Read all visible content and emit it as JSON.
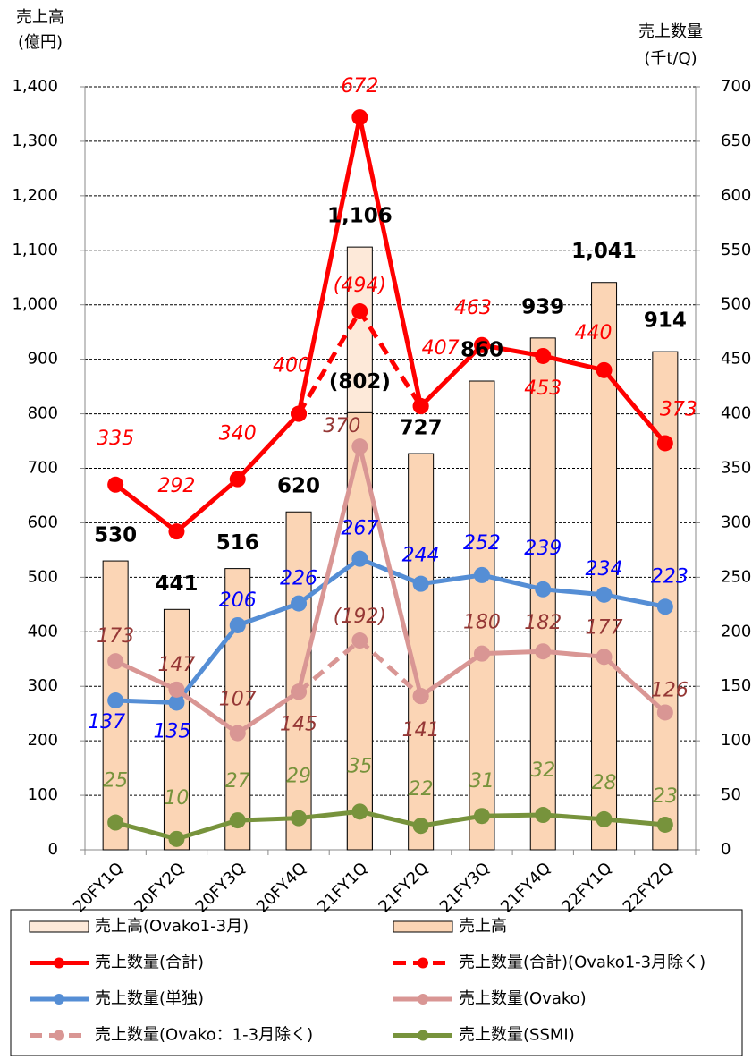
{
  "chart_data": {
    "type": "bar_line",
    "y_label": [
      "売上高",
      "(億円)"
    ],
    "y2_label": [
      "売上数量",
      "(千t/Q)"
    ],
    "categories": [
      "20FY1Q",
      "20FY2Q",
      "20FY3Q",
      "20FY4Q",
      "21FY1Q",
      "21FY2Q",
      "21FY3Q",
      "21FY4Q",
      "22FY1Q",
      "22FY2Q"
    ],
    "ylim": [
      0,
      1400
    ],
    "yticks": [
      0,
      100,
      200,
      300,
      400,
      500,
      600,
      700,
      800,
      900,
      {
        "value": 1000,
        "label": "1,000"
      },
      {
        "value": 1100,
        "label": "1,100"
      },
      {
        "value": 1200,
        "label": "1,200"
      },
      {
        "value": 1300,
        "label": "1,300"
      },
      {
        "value": 1400,
        "label": "1,400"
      }
    ],
    "y2lim": [
      0,
      700
    ],
    "y2ticks": [
      0,
      50,
      100,
      150,
      200,
      250,
      300,
      350,
      400,
      450,
      500,
      550,
      600,
      650,
      700
    ],
    "grid": true,
    "series": [
      {
        "name": "売上高(Ovako1-3月)",
        "type": "bar",
        "color": "#fde9d9",
        "values": [
          null,
          null,
          null,
          null,
          1106,
          null,
          null,
          null,
          null,
          null
        ],
        "value_labels": [
          null,
          null,
          null,
          null,
          "1,106",
          null,
          null,
          null,
          null,
          null
        ]
      },
      {
        "name": "売上高",
        "type": "bar",
        "color": "#fbd5b5",
        "values": [
          530,
          441,
          516,
          620,
          802,
          727,
          860,
          939,
          1041,
          914
        ],
        "value_labels": [
          "530",
          "441",
          "516",
          "620",
          "(802)",
          "727",
          "860",
          "939",
          "1,041",
          "914"
        ]
      },
      {
        "name": "売上数量(合計)",
        "type": "line",
        "axis": "y2",
        "color": "#ff0000",
        "label_color": "#ff0000",
        "values": [
          335,
          292,
          340,
          400,
          672,
          407,
          463,
          453,
          440,
          373
        ]
      },
      {
        "name": "売上数量(合計)(Ovako1-3月除く)",
        "type": "line",
        "axis": "y2",
        "dashed": true,
        "color": "#ff0000",
        "label_color": "#ff0000",
        "values": [
          null,
          null,
          null,
          400,
          494,
          407,
          null,
          null,
          null,
          null
        ],
        "value_labels": [
          null,
          null,
          null,
          null,
          "(494)",
          null,
          null,
          null,
          null,
          null
        ]
      },
      {
        "name": "売上数量(単独)",
        "type": "line",
        "axis": "y2",
        "color": "#558ed5",
        "label_color": "#0000ff",
        "values": [
          137,
          135,
          206,
          226,
          267,
          244,
          252,
          239,
          234,
          223
        ]
      },
      {
        "name": "売上数量(Ovako)",
        "type": "line",
        "axis": "y2",
        "color": "#d99694",
        "label_color": "#953735",
        "values": [
          173,
          147,
          107,
          145,
          370,
          141,
          180,
          182,
          177,
          126
        ]
      },
      {
        "name": "売上数量(Ovako：1-3月除く)",
        "type": "line",
        "axis": "y2",
        "dashed": true,
        "color": "#d99694",
        "label_color": "#953735",
        "values": [
          null,
          null,
          null,
          145,
          192,
          141,
          null,
          null,
          null,
          null
        ],
        "value_labels": [
          null,
          null,
          null,
          null,
          "(192)",
          null,
          null,
          null,
          null,
          null
        ]
      },
      {
        "name": "売上数量(SSMI)",
        "type": "line",
        "axis": "y2",
        "color": "#77933c",
        "label_color": "#77933c",
        "values": [
          25,
          10,
          27,
          29,
          35,
          22,
          31,
          32,
          28,
          23
        ]
      }
    ]
  }
}
